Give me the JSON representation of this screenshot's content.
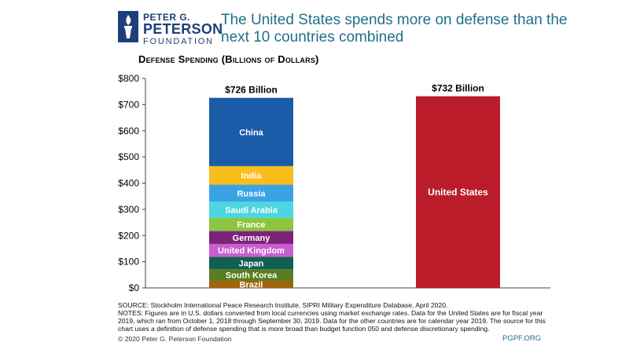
{
  "logo": {
    "line1": "PETER G.",
    "line2": "PETERSON",
    "line3": "FOUNDATION"
  },
  "headline": "The United States spends more on defense than the next 10 countries combined",
  "colors": {
    "headline": "#1f6f8b",
    "brand": "#1e3f7a",
    "china": "#1a5ca8",
    "india": "#f9bd1c",
    "russia": "#3aa3e6",
    "saudi_arabia": "#4dd6df",
    "france": "#8cc540",
    "germany": "#7b2378",
    "united_kingdom": "#c85fd0",
    "japan": "#135e55",
    "south_korea": "#5a7d1f",
    "brazil": "#a0640c",
    "united_states": "#bb1c2a"
  },
  "chart_data": {
    "type": "bar",
    "title": "Defense Spending (Billions of Dollars)",
    "ylim": [
      0,
      800
    ],
    "yticks": [
      0,
      100,
      200,
      300,
      400,
      500,
      600,
      700,
      800
    ],
    "ytick_labels": [
      "$0",
      "$100",
      "$200",
      "$300",
      "$400",
      "$500",
      "$600",
      "$700",
      "$800"
    ],
    "grid": false,
    "stacked_bar": {
      "total_label": "$726 Billion",
      "segments": [
        {
          "name": "Brazil",
          "value": 27,
          "color": "#a0640c"
        },
        {
          "name": "South Korea",
          "value": 44,
          "color": "#5a7d1f"
        },
        {
          "name": "Japan",
          "value": 48,
          "color": "#135e55"
        },
        {
          "name": "United Kingdom",
          "value": 49,
          "color": "#c85fd0"
        },
        {
          "name": "Germany",
          "value": 49,
          "color": "#7b2378"
        },
        {
          "name": "France",
          "value": 50,
          "color": "#8cc540"
        },
        {
          "name": "Saudi Arabia",
          "value": 62,
          "color": "#4dd6df"
        },
        {
          "name": "Russia",
          "value": 65,
          "color": "#3aa3e6"
        },
        {
          "name": "India",
          "value": 71,
          "color": "#f9bd1c"
        },
        {
          "name": "China",
          "value": 261,
          "color": "#1a5ca8"
        }
      ]
    },
    "single_bar": {
      "name": "United States",
      "value": 732,
      "total_label": "$732 Billion",
      "color": "#bb1c2a"
    }
  },
  "footer": {
    "source": "SOURCE: Stockholm International Peace Research Institute, SIPRI Military Expenditure Database, April 2020.",
    "notes": "NOTES: Figures are in U.S. dollars converted from local currencies using market exchange rates. Data for the United States are for fiscal year 2019, which ran from October 1, 2018 through September 30, 2019. Data for the other countries are for calendar year 2019. The source for this chart uses a definition of defense spending that is more broad than budget function 050 and defense discretionary spending.",
    "copyright": "© 2020 Peter G. Peterson Foundation",
    "site": "PGPF.ORG"
  }
}
